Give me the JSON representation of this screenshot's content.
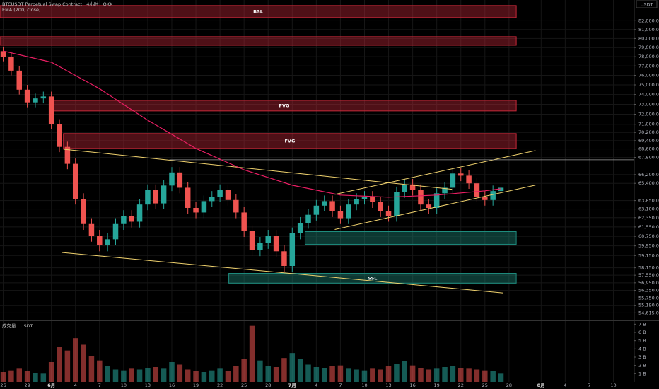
{
  "chart_data": {
    "type": "candlestick",
    "title": "BTCUSDT Perpetual Swap Contract · 4小时 · OKX",
    "currency": "USDT",
    "up_color": "#26a69a",
    "down_color": "#ef5350",
    "log_scale": true,
    "grid": true,
    "x": [
      0,
      1,
      2,
      3,
      4,
      5,
      6,
      7,
      8,
      9,
      10,
      11,
      12,
      13,
      14,
      15,
      16,
      17,
      18,
      19,
      20,
      21,
      22,
      23,
      24,
      25,
      26,
      27,
      28,
      29,
      30,
      31,
      32,
      33,
      34,
      35,
      36,
      37,
      38,
      39,
      40,
      41,
      42,
      43,
      44,
      45,
      46,
      47,
      48,
      49,
      50,
      51,
      52,
      53,
      54,
      55,
      56,
      57,
      58,
      59,
      60,
      61,
      62
    ],
    "open": [
      78600,
      78000,
      76500,
      74500,
      73200,
      73600,
      73800,
      71000,
      68800,
      67200,
      64000,
      61800,
      60800,
      60000,
      60500,
      61800,
      62500,
      62000,
      63500,
      64800,
      63600,
      65200,
      66400,
      65000,
      63200,
      62800,
      63800,
      64200,
      64800,
      63900,
      62800,
      61200,
      59600,
      60200,
      60800,
      59500,
      58300,
      61000,
      61900,
      62600,
      63400,
      63800,
      62900,
      62300,
      63500,
      64000,
      64200,
      63700,
      62900,
      62500,
      64600,
      65300,
      64800,
      63500,
      63200,
      64500,
      65000,
      66300,
      66100,
      65400,
      64200,
      63900,
      64700
    ],
    "high": [
      79100,
      78500,
      77000,
      75000,
      74100,
      74300,
      74300,
      71500,
      69300,
      67700,
      64500,
      62300,
      61300,
      61000,
      62300,
      63000,
      63000,
      64000,
      65300,
      65300,
      65700,
      66900,
      66900,
      65500,
      63700,
      64300,
      64700,
      65300,
      65300,
      64400,
      63300,
      61700,
      60700,
      61300,
      61300,
      60000,
      61500,
      62400,
      63100,
      63900,
      64300,
      64300,
      63400,
      64000,
      64500,
      64700,
      64700,
      64200,
      63400,
      65100,
      65800,
      65800,
      65300,
      64000,
      65000,
      65500,
      66800,
      66800,
      66600,
      65900,
      64700,
      65200,
      65500
    ],
    "low": [
      77500,
      76000,
      74000,
      72700,
      72700,
      73100,
      70500,
      68300,
      66700,
      63500,
      61300,
      60300,
      59500,
      59500,
      60000,
      61300,
      61500,
      61500,
      63000,
      63100,
      63100,
      64700,
      64500,
      62700,
      62300,
      62300,
      63300,
      63700,
      63400,
      62300,
      60700,
      59100,
      59100,
      59700,
      59000,
      57800,
      57800,
      60500,
      61400,
      62100,
      62900,
      62400,
      61800,
      61800,
      63000,
      63500,
      63200,
      62400,
      62000,
      62000,
      64100,
      64300,
      63000,
      62700,
      62700,
      64000,
      64500,
      65600,
      64900,
      63700,
      63400,
      63400,
      64200
    ],
    "close": [
      78000,
      76500,
      74500,
      73200,
      73600,
      73800,
      71000,
      68800,
      67200,
      64000,
      61800,
      60800,
      60000,
      60500,
      61800,
      62500,
      62000,
      63500,
      64800,
      63600,
      65200,
      66400,
      65000,
      63200,
      62800,
      63800,
      64200,
      64800,
      63900,
      62800,
      61200,
      59600,
      60200,
      60800,
      59500,
      58300,
      61000,
      61900,
      62600,
      63400,
      63800,
      62900,
      62300,
      63500,
      64000,
      64200,
      63700,
      62900,
      62500,
      64600,
      65300,
      64800,
      63500,
      63200,
      64500,
      65000,
      66300,
      66100,
      65400,
      64200,
      63900,
      64700,
      65000
    ],
    "xlim": [
      -0.4,
      78.6
    ],
    "xticks": [
      {
        "value": 0,
        "label": "26"
      },
      {
        "value": 3,
        "label": "29"
      },
      {
        "value": 6,
        "label": "6月"
      },
      {
        "value": 9,
        "label": "4"
      },
      {
        "value": 12,
        "label": "7"
      },
      {
        "value": 15,
        "label": "10"
      },
      {
        "value": 18,
        "label": "13"
      },
      {
        "value": 21,
        "label": "16"
      },
      {
        "value": 24,
        "label": "19"
      },
      {
        "value": 27,
        "label": "22"
      },
      {
        "value": 30,
        "label": "25"
      },
      {
        "value": 33,
        "label": "28"
      },
      {
        "value": 36,
        "label": "7月"
      },
      {
        "value": 39,
        "label": "4"
      },
      {
        "value": 42,
        "label": "7"
      },
      {
        "value": 45,
        "label": "10"
      },
      {
        "value": 48,
        "label": "13"
      },
      {
        "value": 51,
        "label": "16"
      },
      {
        "value": 54,
        "label": "19"
      },
      {
        "value": 57,
        "label": "22"
      },
      {
        "value": 60,
        "label": "25"
      },
      {
        "value": 63,
        "label": "28"
      },
      {
        "value": 67,
        "label": "8月"
      },
      {
        "value": 70,
        "label": "4"
      },
      {
        "value": 73,
        "label": "7"
      },
      {
        "value": 76,
        "label": "10"
      }
    ],
    "ylim": [
      54100,
      84400
    ],
    "yticks": [
      {
        "value": 82000,
        "label": "82,000.0"
      },
      {
        "value": 81000,
        "label": "81,000.0"
      },
      {
        "value": 80000,
        "label": "80,000.0"
      },
      {
        "value": 79000,
        "label": "79,000.0"
      },
      {
        "value": 78000,
        "label": "78,000.0"
      },
      {
        "value": 77000,
        "label": "77,000.0"
      },
      {
        "value": 76000,
        "label": "76,000.0"
      },
      {
        "value": 75000,
        "label": "75,000.0"
      },
      {
        "value": 74000,
        "label": "74,000.0"
      },
      {
        "value": 73000,
        "label": "73,000.0"
      },
      {
        "value": 72000,
        "label": "72,000.0"
      },
      {
        "value": 71000,
        "label": "71,000.0"
      },
      {
        "value": 70200,
        "label": "70,200.0"
      },
      {
        "value": 69400,
        "label": "69,400.0"
      },
      {
        "value": 68600,
        "label": "68,600.0"
      },
      {
        "value": 67800,
        "label": "67,800.0"
      },
      {
        "value": 66200,
        "label": "66,200.0"
      },
      {
        "value": 65400,
        "label": "65,400.0"
      },
      {
        "value": 63850,
        "label": "63,850.0"
      },
      {
        "value": 63100,
        "label": "63,100.0"
      },
      {
        "value": 62350,
        "label": "62,350.0"
      },
      {
        "value": 61550,
        "label": "61,550.0"
      },
      {
        "value": 60750,
        "label": "60,750.0"
      },
      {
        "value": 59950,
        "label": "59,950.0"
      },
      {
        "value": 59150,
        "label": "59,150.0"
      },
      {
        "value": 58150,
        "label": "58,150.0"
      },
      {
        "value": 57550,
        "label": "57,550.0"
      },
      {
        "value": 56950,
        "label": "56,950.0"
      },
      {
        "value": 56350,
        "label": "56,350.0"
      },
      {
        "value": 55750,
        "label": "55,750.0"
      },
      {
        "value": 55190,
        "label": "55,190.0"
      },
      {
        "value": 54615,
        "label": "54,615.0"
      }
    ],
    "ema": {
      "name": "EMA (200, close)",
      "color": "#e91e63",
      "x": [
        0,
        6,
        12,
        18,
        24,
        30,
        36,
        42,
        48,
        54,
        60,
        62
      ],
      "values": [
        78620,
        77400,
        74600,
        71400,
        68650,
        66640,
        65230,
        64340,
        64150,
        64340,
        64720,
        64910
      ]
    },
    "zones": [
      {
        "label": "BSL",
        "color": "#c62839",
        "x": [
          -0.4,
          63.9
        ],
        "y": [
          82360,
          83750
        ]
      },
      {
        "color": "#c62839",
        "x": [
          -0.4,
          63.9
        ],
        "y": [
          79250,
          80200
        ]
      },
      {
        "label": "FVG",
        "color": "#c62839",
        "x": [
          6.1,
          63.9
        ],
        "y": [
          72330,
          73400
        ]
      },
      {
        "label": "FVG",
        "color": "#c62839",
        "x": [
          7.5,
          63.9
        ],
        "y": [
          68650,
          70090
        ]
      },
      {
        "color": "#1e8c7e",
        "x": [
          37.6,
          63.9
        ],
        "y": [
          60080,
          61150
        ]
      },
      {
        "label": "SSL",
        "color": "#1e8c7e",
        "x": [
          28.1,
          63.9
        ],
        "y": [
          56920,
          57700
        ]
      }
    ],
    "lines": {
      "color": "#f0d26e",
      "items": [
        {
          "x": [
            7.5,
            55.9
          ],
          "y": [
            68580,
            64860
          ]
        },
        {
          "x": [
            7.3,
            62.3
          ],
          "y": [
            59400,
            56150
          ]
        },
        {
          "x": [
            41.3,
            66.3
          ],
          "y": [
            61330,
            65240
          ]
        },
        {
          "x": [
            41.3,
            66.3
          ],
          "y": [
            64400,
            68450
          ]
        }
      ]
    },
    "hline": {
      "color": "#9e9e9e",
      "x": [
        20.7,
        78.6
      ],
      "y": 67580
    },
    "volume": {
      "title": "成交量 · USDT",
      "values": [
        1.2,
        1.4,
        1.6,
        1.3,
        1.1,
        1.0,
        2.4,
        4.2,
        3.8,
        5.3,
        4.5,
        3.1,
        2.6,
        1.9,
        1.5,
        1.4,
        1.6,
        1.5,
        1.7,
        1.8,
        1.6,
        2.4,
        2.1,
        1.5,
        1.3,
        1.2,
        1.4,
        1.6,
        1.3,
        1.9,
        2.8,
        6.8,
        2.6,
        1.9,
        1.8,
        2.9,
        3.5,
        2.8,
        2.1,
        1.8,
        1.7,
        1.9,
        2.0,
        1.6,
        1.5,
        1.4,
        1.6,
        1.5,
        1.9,
        2.2,
        2.5,
        2.0,
        1.7,
        1.5,
        1.6,
        1.8,
        1.9,
        1.7,
        1.6,
        1.5,
        1.4,
        1.3,
        1.0
      ],
      "ylim": [
        0,
        7.2
      ],
      "yticks": [
        {
          "value": 1,
          "label": "1 B"
        },
        {
          "value": 2,
          "label": "2 B"
        },
        {
          "value": 3,
          "label": "3 B"
        },
        {
          "value": 4,
          "label": "4 B"
        },
        {
          "value": 5,
          "label": "5 B"
        },
        {
          "value": 6,
          "label": "6 B"
        },
        {
          "value": 7,
          "label": "7 B"
        }
      ]
    }
  }
}
